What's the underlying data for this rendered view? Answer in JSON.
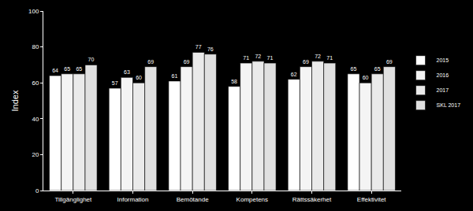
{
  "chart_data": {
    "type": "bar",
    "y_label": "Index",
    "categories": [
      "Tillgänglighet",
      "Information",
      "Bemötande",
      "Kompetens",
      "Rättssäkerhet",
      "Effektivitet"
    ],
    "series": [
      {
        "name": "2015",
        "color": "#ffffff",
        "values": [
          64,
          57,
          61,
          58,
          62,
          65
        ]
      },
      {
        "name": "2016",
        "color": "#f4f4f4",
        "values": [
          65,
          63,
          69,
          71,
          69,
          60
        ]
      },
      {
        "name": "2017",
        "color": "#eaeaea",
        "values": [
          65,
          60,
          77,
          72,
          72,
          65
        ]
      },
      {
        "name": "SKL 2017",
        "color": "#e0e0e0",
        "values": [
          70,
          69,
          76,
          71,
          71,
          69
        ]
      }
    ],
    "ylim": [
      0,
      100
    ],
    "yticks": [
      0,
      20,
      40,
      60,
      80,
      100
    ],
    "grid": false,
    "legend": "right",
    "data_labels": true
  }
}
